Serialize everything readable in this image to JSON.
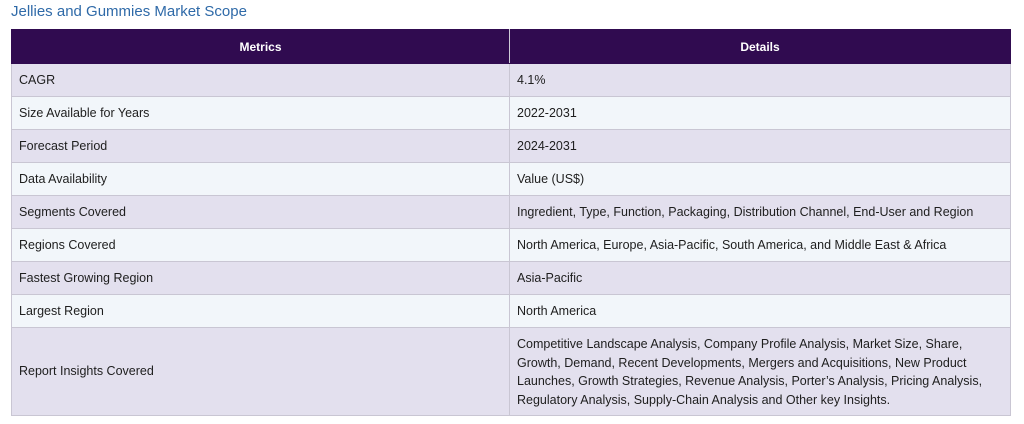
{
  "title": "Jellies and Gummies Market Scope",
  "table": {
    "headers": [
      "Metrics",
      "Details"
    ],
    "rows": [
      {
        "metric": "CAGR",
        "detail": "4.1%"
      },
      {
        "metric": "Size Available for Years",
        "detail": "2022-2031"
      },
      {
        "metric": "Forecast Period",
        "detail": "2024-2031"
      },
      {
        "metric": "Data Availability",
        "detail": "Value (US$)"
      },
      {
        "metric": "Segments Covered",
        "detail": "Ingredient, Type, Function, Packaging, Distribution Channel, End-User and Region"
      },
      {
        "metric": "Regions Covered",
        "detail": "North America, Europe, Asia-Pacific, South America, and Middle East & Africa"
      },
      {
        "metric": "Fastest Growing Region",
        "detail": "Asia-Pacific"
      },
      {
        "metric": "Largest Region",
        "detail": "North America"
      },
      {
        "metric": "Report Insights Covered",
        "detail": "Competitive Landscape Analysis, Company Profile Analysis, Market Size, Share, Growth, Demand, Recent Developments, Mergers and Acquisitions, New Product Launches, Growth Strategies, Revenue Analysis, Porter’s Analysis, Pricing Analysis, Regulatory Analysis, Supply-Chain Analysis and Other key Insights."
      }
    ]
  },
  "colors": {
    "header_bg": "#300b50",
    "title": "#2f6aa8",
    "row_odd": "#e3e0ee",
    "row_even": "#f2f6fa"
  }
}
